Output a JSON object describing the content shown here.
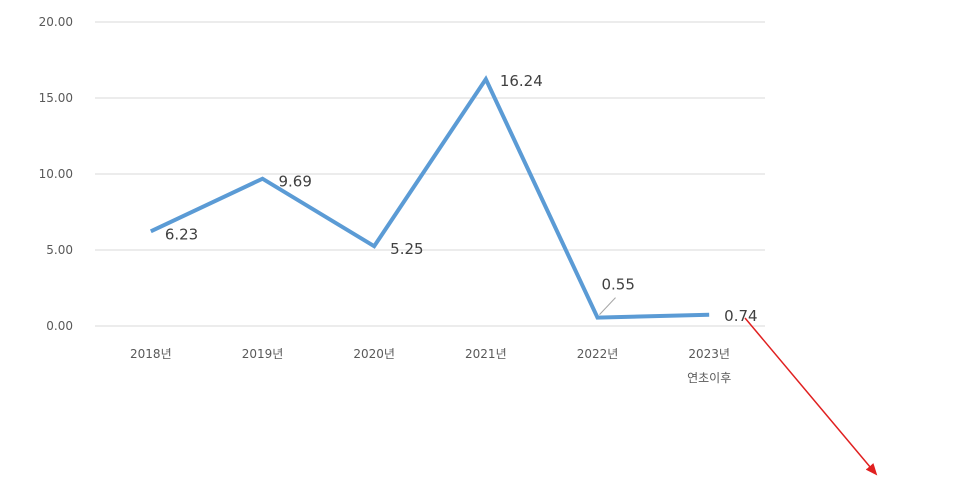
{
  "chart_data": {
    "type": "line",
    "categories": [
      "2018년",
      "2019년",
      "2020년",
      "2021년",
      "2022년",
      "2023년\n연초이후"
    ],
    "series": [
      {
        "values": [
          6.23,
          9.69,
          5.25,
          16.24,
          0.55,
          0.74
        ]
      }
    ],
    "data_labels": [
      "6.23",
      "9.69",
      "5.25",
      "16.24",
      "0.55",
      "0.74"
    ],
    "y_ticks": [
      "20.00",
      "15.00",
      "10.00",
      "5.00",
      "0.00"
    ],
    "ylim": [
      0,
      20
    ],
    "grid": true,
    "legend": "none",
    "colors": {
      "line": "#5b9bd5",
      "grid": "#d9d9d9",
      "annotation_arrow": "#e02020",
      "leader": "#a6a6a6"
    }
  }
}
